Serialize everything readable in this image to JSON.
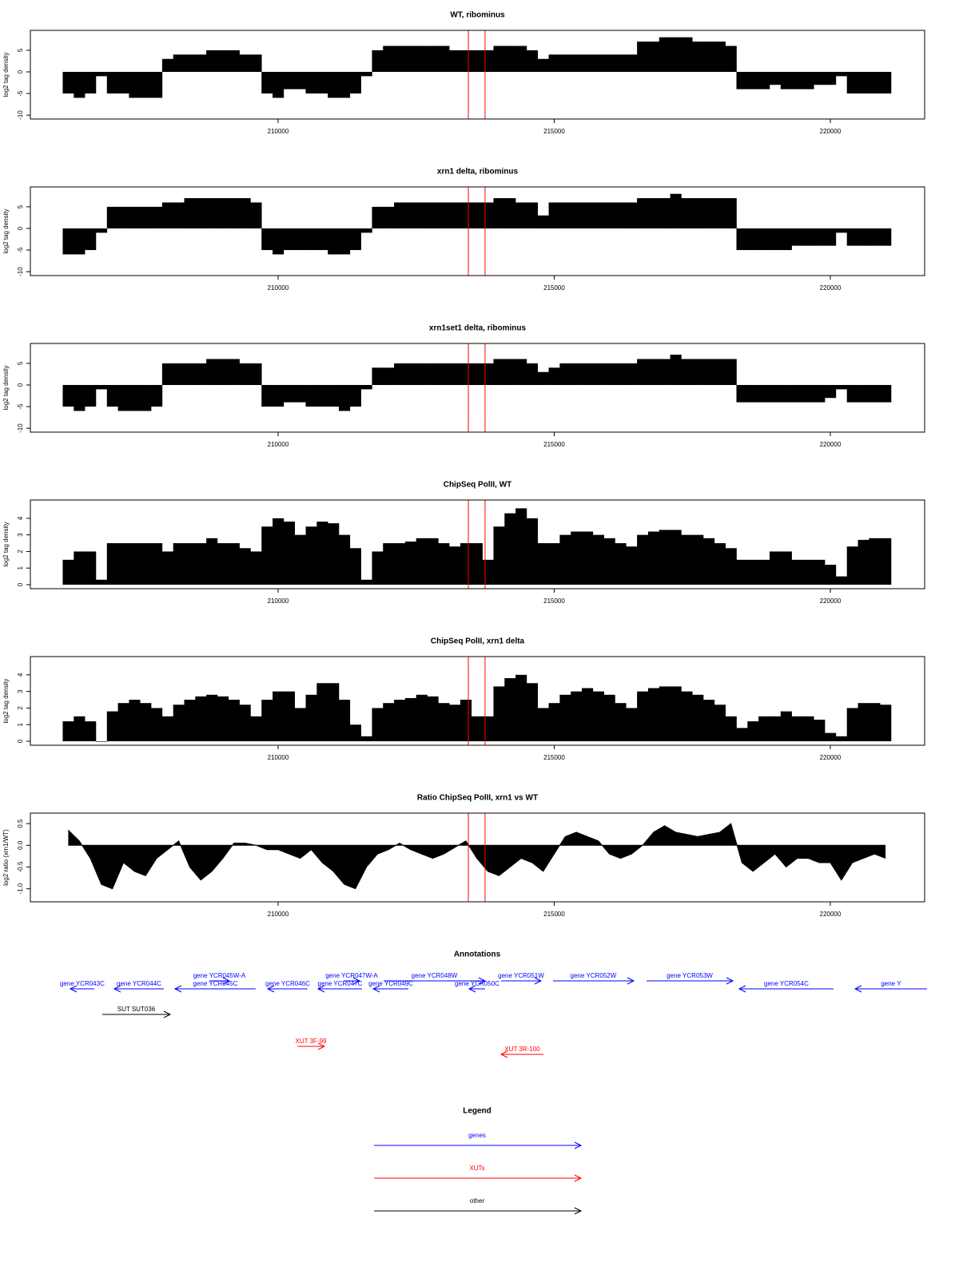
{
  "chart_data": [
    {
      "type": "bar",
      "title": "WT, ribominus",
      "ylabel": "log2 tag density",
      "color": "#000000",
      "markers": {
        "x": [
          213445,
          213748
        ],
        "color": "#ff0000"
      },
      "xlim": [
        205514,
        221708
      ],
      "xticks": [
        210000,
        215000,
        220000
      ],
      "ylim": [
        -10.9,
        9.6
      ],
      "yticks": [
        -10,
        -5,
        0,
        5
      ],
      "x": [
        206200,
        206400,
        206600,
        206800,
        207000,
        207200,
        207400,
        207600,
        207800,
        208000,
        208200,
        208400,
        208600,
        208800,
        209000,
        209200,
        209400,
        209600,
        209800,
        210000,
        210200,
        210400,
        210600,
        210800,
        211000,
        211200,
        211400,
        211600,
        211800,
        212000,
        212200,
        212400,
        212600,
        212800,
        213000,
        213200,
        213400,
        213600,
        213800,
        214000,
        214200,
        214400,
        214600,
        214800,
        215000,
        215200,
        215400,
        215600,
        215800,
        216000,
        216200,
        216400,
        216600,
        216800,
        217000,
        217200,
        217400,
        217600,
        217800,
        218000,
        218200,
        218400,
        218600,
        218800,
        219000,
        219200,
        219400,
        219600,
        219800,
        220000,
        220200,
        220400,
        220600,
        220800,
        221000
      ],
      "values": [
        -5,
        -6,
        -5,
        -1,
        -5,
        -5,
        -6,
        -6,
        -6,
        3,
        4,
        4,
        4,
        5,
        5,
        5,
        4,
        4,
        -5,
        -6,
        -4,
        -4,
        -5,
        -5,
        -6,
        -6,
        -5,
        -1,
        5,
        6,
        6,
        6,
        6,
        6,
        6,
        5,
        5,
        5,
        5,
        6,
        6,
        6,
        5,
        3,
        4,
        4,
        4,
        4,
        4,
        4,
        4,
        4,
        7,
        7,
        8,
        8,
        8,
        7,
        7,
        7,
        6,
        -4,
        -4,
        -4,
        -3,
        -4,
        -4,
        -4,
        -3,
        -3,
        -1,
        -5,
        -5,
        -5,
        -5
      ]
    },
    {
      "type": "bar",
      "title": "xrn1 delta, ribominus",
      "ylabel": "log2 tag density",
      "color": "#000000",
      "markers": {
        "x": [
          213445,
          213748
        ],
        "color": "#ff0000"
      },
      "xlim": [
        205514,
        221708
      ],
      "xticks": [
        210000,
        215000,
        220000
      ],
      "ylim": [
        -10.9,
        9.6
      ],
      "yticks": [
        -10,
        -5,
        0,
        5
      ],
      "x": [
        206200,
        206400,
        206600,
        206800,
        207000,
        207200,
        207400,
        207600,
        207800,
        208000,
        208200,
        208400,
        208600,
        208800,
        209000,
        209200,
        209400,
        209600,
        209800,
        210000,
        210200,
        210400,
        210600,
        210800,
        211000,
        211200,
        211400,
        211600,
        211800,
        212000,
        212200,
        212400,
        212600,
        212800,
        213000,
        213200,
        213400,
        213600,
        213800,
        214000,
        214200,
        214400,
        214600,
        214800,
        215000,
        215200,
        215400,
        215600,
        215800,
        216000,
        216200,
        216400,
        216600,
        216800,
        217000,
        217200,
        217400,
        217600,
        217800,
        218000,
        218200,
        218400,
        218600,
        218800,
        219000,
        219200,
        219400,
        219600,
        219800,
        220000,
        220200,
        220400,
        220600,
        220800,
        221000
      ],
      "values": [
        -6,
        -6,
        -5,
        -1,
        5,
        5,
        5,
        5,
        5,
        6,
        6,
        7,
        7,
        7,
        7,
        7,
        7,
        6,
        -5,
        -6,
        -5,
        -5,
        -5,
        -5,
        -6,
        -6,
        -5,
        -1,
        5,
        5,
        6,
        6,
        6,
        6,
        6,
        6,
        6,
        6,
        6,
        7,
        7,
        6,
        6,
        3,
        6,
        6,
        6,
        6,
        6,
        6,
        6,
        6,
        7,
        7,
        7,
        8,
        7,
        7,
        7,
        7,
        7,
        -5,
        -5,
        -5,
        -5,
        -5,
        -4,
        -4,
        -4,
        -4,
        -1,
        -4,
        -4,
        -4,
        -4
      ]
    },
    {
      "type": "bar",
      "title": "xrn1set1 delta, ribominus",
      "ylabel": "log2 tag density",
      "color": "#000000",
      "markers": {
        "x": [
          213445,
          213748
        ],
        "color": "#ff0000"
      },
      "xlim": [
        205514,
        221708
      ],
      "xticks": [
        210000,
        215000,
        220000
      ],
      "ylim": [
        -10.9,
        9.6
      ],
      "yticks": [
        -10,
        -5,
        0,
        5
      ],
      "x": [
        206200,
        206400,
        206600,
        206800,
        207000,
        207200,
        207400,
        207600,
        207800,
        208000,
        208200,
        208400,
        208600,
        208800,
        209000,
        209200,
        209400,
        209600,
        209800,
        210000,
        210200,
        210400,
        210600,
        210800,
        211000,
        211200,
        211400,
        211600,
        211800,
        212000,
        212200,
        212400,
        212600,
        212800,
        213000,
        213200,
        213400,
        213600,
        213800,
        214000,
        214200,
        214400,
        214600,
        214800,
        215000,
        215200,
        215400,
        215600,
        215800,
        216000,
        216200,
        216400,
        216600,
        216800,
        217000,
        217200,
        217400,
        217600,
        217800,
        218000,
        218200,
        218400,
        218600,
        218800,
        219000,
        219200,
        219400,
        219600,
        219800,
        220000,
        220200,
        220400,
        220600,
        220800,
        221000
      ],
      "values": [
        -5,
        -6,
        -5,
        -1,
        -5,
        -6,
        -6,
        -6,
        -5,
        5,
        5,
        5,
        5,
        6,
        6,
        6,
        5,
        5,
        -5,
        -5,
        -4,
        -4,
        -5,
        -5,
        -5,
        -6,
        -5,
        -1,
        4,
        4,
        5,
        5,
        5,
        5,
        5,
        5,
        5,
        5,
        5,
        6,
        6,
        6,
        5,
        3,
        4,
        5,
        5,
        5,
        5,
        5,
        5,
        5,
        6,
        6,
        6,
        7,
        6,
        6,
        6,
        6,
        6,
        -4,
        -4,
        -4,
        -4,
        -4,
        -4,
        -4,
        -4,
        -3,
        -1,
        -4,
        -4,
        -4,
        -4
      ]
    },
    {
      "type": "bar",
      "title": "ChipSeq PolII, WT",
      "ylabel": "log2 tag density",
      "color": "#000000",
      "markers": {
        "x": [
          213445,
          213748
        ],
        "color": "#ff0000"
      },
      "xlim": [
        205514,
        221708
      ],
      "xticks": [
        210000,
        215000,
        220000
      ],
      "ylim": [
        -0.24,
        5.1
      ],
      "yticks": [
        0,
        1,
        2,
        3,
        4
      ],
      "x": [
        206200,
        206400,
        206600,
        206800,
        207000,
        207200,
        207400,
        207600,
        207800,
        208000,
        208200,
        208400,
        208600,
        208800,
        209000,
        209200,
        209400,
        209600,
        209800,
        210000,
        210200,
        210400,
        210600,
        210800,
        211000,
        211200,
        211400,
        211600,
        211800,
        212000,
        212200,
        212400,
        212600,
        212800,
        213000,
        213200,
        213400,
        213600,
        213800,
        214000,
        214200,
        214400,
        214600,
        214800,
        215000,
        215200,
        215400,
        215600,
        215800,
        216000,
        216200,
        216400,
        216600,
        216800,
        217000,
        217200,
        217400,
        217600,
        217800,
        218000,
        218200,
        218400,
        218600,
        218800,
        219000,
        219200,
        219400,
        219600,
        219800,
        220000,
        220200,
        220400,
        220600,
        220800,
        221000
      ],
      "values": [
        1.5,
        2,
        2,
        0.3,
        2.5,
        2.5,
        2.5,
        2.5,
        2.5,
        2,
        2.5,
        2.5,
        2.5,
        2.8,
        2.5,
        2.5,
        2.2,
        2,
        3.5,
        4,
        3.8,
        3,
        3.5,
        3.8,
        3.7,
        3,
        2.2,
        0.3,
        2,
        2.5,
        2.5,
        2.6,
        2.8,
        2.8,
        2.5,
        2.3,
        2.5,
        2.5,
        1.5,
        3.5,
        4.3,
        4.6,
        4,
        2.5,
        2.5,
        3,
        3.2,
        3.2,
        3,
        2.8,
        2.5,
        2.3,
        3,
        3.2,
        3.3,
        3.3,
        3,
        3,
        2.8,
        2.5,
        2.2,
        1.5,
        1.5,
        1.5,
        2,
        2,
        1.5,
        1.5,
        1.5,
        1.2,
        0.5,
        2.3,
        2.7,
        2.8,
        2.8
      ]
    },
    {
      "type": "bar",
      "title": "ChipSeq PolII, xrn1 delta",
      "ylabel": "log2 tag density",
      "color": "#000000",
      "markers": {
        "x": [
          213445,
          213748
        ],
        "color": "#ff0000"
      },
      "xlim": [
        205514,
        221708
      ],
      "xticks": [
        210000,
        215000,
        220000
      ],
      "ylim": [
        -0.24,
        5.1
      ],
      "yticks": [
        0,
        1,
        2,
        3,
        4
      ],
      "x": [
        206200,
        206400,
        206600,
        206800,
        207000,
        207200,
        207400,
        207600,
        207800,
        208000,
        208200,
        208400,
        208600,
        208800,
        209000,
        209200,
        209400,
        209600,
        209800,
        210000,
        210200,
        210400,
        210600,
        210800,
        211000,
        211200,
        211400,
        211600,
        211800,
        212000,
        212200,
        212400,
        212600,
        212800,
        213000,
        213200,
        213400,
        213600,
        213800,
        214000,
        214200,
        214400,
        214600,
        214800,
        215000,
        215200,
        215400,
        215600,
        215800,
        216000,
        216200,
        216400,
        216600,
        216800,
        217000,
        217200,
        217400,
        217600,
        217800,
        218000,
        218200,
        218400,
        218600,
        218800,
        219000,
        219200,
        219400,
        219600,
        219800,
        220000,
        220200,
        220400,
        220600,
        220800,
        221000
      ],
      "values": [
        1.2,
        1.5,
        1.2,
        0,
        1.8,
        2.3,
        2.5,
        2.3,
        2,
        1.5,
        2.2,
        2.5,
        2.7,
        2.8,
        2.7,
        2.5,
        2.2,
        1.5,
        2.5,
        3,
        3,
        2,
        2.8,
        3.5,
        3.5,
        2.5,
        1,
        0.3,
        2,
        2.3,
        2.5,
        2.6,
        2.8,
        2.7,
        2.3,
        2.2,
        2.5,
        1.5,
        1.5,
        3.3,
        3.8,
        4,
        3.5,
        2,
        2.3,
        2.8,
        3,
        3.2,
        3,
        2.8,
        2.3,
        2,
        3,
        3.2,
        3.3,
        3.3,
        3,
        2.8,
        2.5,
        2.2,
        1.5,
        0.8,
        1.2,
        1.5,
        1.5,
        1.8,
        1.5,
        1.5,
        1.3,
        0.5,
        0.3,
        2,
        2.3,
        2.3,
        2.2
      ]
    },
    {
      "type": "area",
      "title": "Ratio ChipSeq PolII, xrn1 vs WT",
      "ylabel": "log2 ratio (xrn1/WT)",
      "color": "#000000",
      "markers": {
        "x": [
          213445,
          213748
        ],
        "color": "#ff0000"
      },
      "xlim": [
        205514,
        221708
      ],
      "xticks": [
        210000,
        215000,
        220000
      ],
      "ylim": [
        -1.3,
        0.74
      ],
      "yticks": [
        {
          "value": -1,
          "label": "-1.0"
        },
        -0.5,
        {
          "value": 0,
          "label": "0.0"
        },
        0.5
      ],
      "x": [
        206200,
        206400,
        206600,
        206800,
        207000,
        207200,
        207400,
        207600,
        207800,
        208000,
        208200,
        208400,
        208600,
        208800,
        209000,
        209200,
        209400,
        209600,
        209800,
        210000,
        210200,
        210400,
        210600,
        210800,
        211000,
        211200,
        211400,
        211600,
        211800,
        212000,
        212200,
        212400,
        212600,
        212800,
        213000,
        213200,
        213400,
        213600,
        213800,
        214000,
        214200,
        214400,
        214600,
        214800,
        215000,
        215200,
        215400,
        215600,
        215800,
        216000,
        216200,
        216400,
        216600,
        216800,
        217000,
        217200,
        217400,
        217600,
        217800,
        218000,
        218200,
        218400,
        218600,
        218800,
        219000,
        219200,
        219400,
        219600,
        219800,
        220000,
        220200,
        220400,
        220600,
        220800,
        221000
      ],
      "values": [
        0.35,
        0.1,
        -0.3,
        -0.9,
        -1.0,
        -0.4,
        -0.6,
        -0.7,
        -0.3,
        -0.1,
        0.1,
        -0.5,
        -0.8,
        -0.6,
        -0.3,
        0.05,
        0.05,
        0,
        -0.1,
        -0.1,
        -0.2,
        -0.3,
        -0.1,
        -0.4,
        -0.6,
        -0.9,
        -1.0,
        -0.5,
        -0.2,
        -0.1,
        0.05,
        -0.1,
        -0.2,
        -0.3,
        -0.2,
        -0.05,
        0.1,
        -0.3,
        -0.6,
        -0.7,
        -0.5,
        -0.3,
        -0.4,
        -0.6,
        -0.2,
        0.2,
        0.3,
        0.2,
        0.1,
        -0.2,
        -0.3,
        -0.2,
        0,
        0.3,
        0.45,
        0.3,
        0.25,
        0.2,
        0.25,
        0.3,
        0.5,
        -0.4,
        -0.6,
        -0.4,
        -0.2,
        -0.5,
        -0.3,
        -0.3,
        -0.4,
        -0.4,
        -0.8,
        -0.4,
        -0.3,
        -0.2,
        -0.3
      ]
    }
  ],
  "annotations": {
    "title": "Annotations",
    "features": [
      {
        "label": "gene YCR043C",
        "start": 206237,
        "end": 206670,
        "strand": "-",
        "color": "#0000ff"
      },
      {
        "label": "gene YCR044C",
        "start": 207033,
        "end": 207931,
        "strand": "-",
        "color": "#0000ff"
      },
      {
        "label": "gene YCR045W-A",
        "start": 208756,
        "end": 209117,
        "strand": "+",
        "color": "#0000ff"
      },
      {
        "label": "gene YCR045C",
        "start": 208133,
        "end": 209594,
        "strand": "-",
        "color": "#0000ff"
      },
      {
        "label": "gene YCR046C",
        "start": 209812,
        "end": 210535,
        "strand": "-",
        "color": "#0000ff"
      },
      {
        "label": "gene YCR047W-A",
        "start": 211187,
        "end": 211476,
        "strand": "+",
        "color": "#0000ff"
      },
      {
        "label": "gene YCR047C",
        "start": 210723,
        "end": 211520,
        "strand": "-",
        "color": "#0000ff"
      },
      {
        "label": "gene YCR048W",
        "start": 211911,
        "end": 213748,
        "strand": "+",
        "color": "#0000ff"
      },
      {
        "label": "gene YCR049C",
        "start": 211723,
        "end": 212359,
        "strand": "-",
        "color": "#0000ff"
      },
      {
        "label": "gene YCR050C",
        "start": 213459,
        "end": 213748,
        "strand": "-",
        "color": "#0000ff"
      },
      {
        "label": "gene YCR051W",
        "start": 214038,
        "end": 214761,
        "strand": "+",
        "color": "#0000ff"
      },
      {
        "label": "gene YCR052W",
        "start": 214978,
        "end": 216440,
        "strand": "+",
        "color": "#0000ff"
      },
      {
        "label": "gene YCR053W",
        "start": 216672,
        "end": 218235,
        "strand": "+",
        "color": "#0000ff"
      },
      {
        "label": "gene YCR054C",
        "start": 218350,
        "end": 220058,
        "strand": "-",
        "color": "#0000ff"
      },
      {
        "label": "gene Y",
        "start": 220449,
        "end": 221750,
        "strand": "-",
        "color": "#0000ff"
      },
      {
        "label": "SUT SUT036",
        "start": 206816,
        "end": 208046,
        "strand": "+",
        "color": "#000000"
      },
      {
        "label": "XUT 3F-99",
        "start": 210348,
        "end": 210840,
        "strand": "+",
        "color": "#ff0000"
      },
      {
        "label": "XUT 3R-100",
        "start": 214038,
        "end": 214805,
        "strand": "-",
        "color": "#ff0000"
      }
    ]
  },
  "legend": {
    "title": "Legend",
    "entries": [
      {
        "label": "genes",
        "color": "#0000ff"
      },
      {
        "label": "XUTs",
        "color": "#ff0000"
      },
      {
        "label": "other",
        "color": "#000000"
      }
    ]
  }
}
